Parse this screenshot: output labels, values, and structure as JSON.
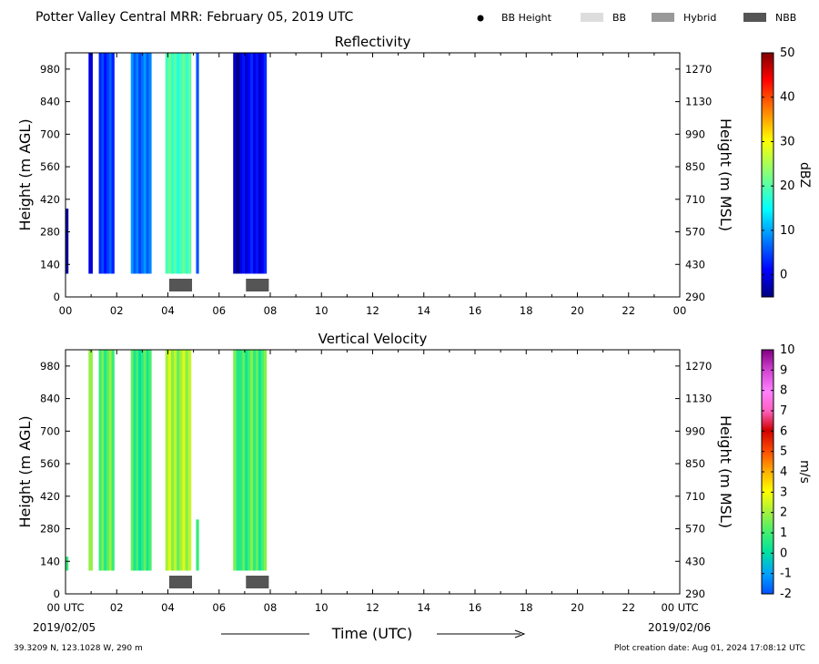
{
  "header": {
    "title": "Potter Valley Central MRR:  February 05, 2019 UTC",
    "legend": [
      {
        "label": "BB Height",
        "kind": "dot",
        "color": "#000000"
      },
      {
        "label": "BB",
        "kind": "box",
        "color": "#dddddd"
      },
      {
        "label": "Hybrid",
        "kind": "box",
        "color": "#999999"
      },
      {
        "label": "NBB",
        "kind": "box",
        "color": "#555555"
      }
    ]
  },
  "footer": {
    "location": "39.3209 N, 123.1028 W, 290 m",
    "creation": "Plot creation date: Aug 01, 2024 17:08:12 UTC",
    "time_label": "Time (UTC)",
    "start_date": "2019/02/05",
    "end_date": "2019/02/06"
  },
  "chart_data": [
    {
      "type": "heatmap",
      "title": "Reflectivity",
      "ylabel": "Height (m AGL)",
      "ylabel_right": "Height (m MSL)",
      "xlim": [
        0,
        24
      ],
      "ylim": [
        0,
        1050
      ],
      "xticks": [
        "00",
        "02",
        "04",
        "06",
        "08",
        "10",
        "12",
        "14",
        "16",
        "18",
        "20",
        "22",
        "00"
      ],
      "yticks_left": [
        0,
        140,
        280,
        420,
        560,
        700,
        840,
        980
      ],
      "yticks_right": [
        290,
        430,
        570,
        710,
        850,
        990,
        1130,
        1270
      ],
      "colorbar": {
        "label": "dBZ",
        "min": -5,
        "max": 50,
        "ticks": [
          0,
          10,
          20,
          30,
          40,
          50
        ],
        "colormap": "jet"
      },
      "echo_columns": [
        {
          "start": 0.0,
          "end": 0.1,
          "top": 380,
          "value": -1
        },
        {
          "start": 0.9,
          "end": 1.05,
          "top": 1050,
          "value": -2
        },
        {
          "start": 1.3,
          "end": 1.9,
          "top": 1050,
          "value": 4
        },
        {
          "start": 2.55,
          "end": 3.35,
          "top": 1050,
          "value": 7
        },
        {
          "start": 3.9,
          "end": 4.9,
          "top": 1050,
          "value": 19
        },
        {
          "start": 5.1,
          "end": 5.2,
          "top": 1050,
          "value": 8
        },
        {
          "start": 6.55,
          "end": 6.8,
          "top": 1050,
          "value": -3
        },
        {
          "start": 6.8,
          "end": 7.85,
          "top": 1050,
          "value": 1
        }
      ],
      "bright_band": [
        {
          "start": 4.0,
          "end": 5.0,
          "type": "NBB"
        },
        {
          "start": 7.0,
          "end": 8.0,
          "type": "NBB"
        }
      ]
    },
    {
      "type": "heatmap",
      "title": "Vertical Velocity",
      "ylabel": "Height (m AGL)",
      "ylabel_right": "Height (m MSL)",
      "xlim": [
        0,
        24
      ],
      "ylim": [
        0,
        1050
      ],
      "xticks": [
        "00 UTC",
        "02",
        "04",
        "06",
        "08",
        "10",
        "12",
        "14",
        "16",
        "18",
        "20",
        "22",
        "00 UTC"
      ],
      "yticks_left": [
        0,
        140,
        280,
        420,
        560,
        700,
        840,
        980
      ],
      "yticks_right": [
        290,
        430,
        570,
        710,
        850,
        990,
        1130,
        1270
      ],
      "colorbar": {
        "label": "m/s",
        "min": -2,
        "max": 10,
        "ticks": [
          -2,
          -1,
          0,
          1,
          2,
          3,
          4,
          5,
          6,
          7,
          8,
          9,
          10
        ],
        "colormap": "rainbow"
      },
      "echo_columns": [
        {
          "start": 0.0,
          "end": 0.1,
          "top": 160,
          "value": 1.5
        },
        {
          "start": 0.9,
          "end": 1.05,
          "top": 1050,
          "value": 1.5
        },
        {
          "start": 1.3,
          "end": 1.9,
          "top": 1050,
          "value": 1.2
        },
        {
          "start": 2.55,
          "end": 3.35,
          "top": 1050,
          "value": 0.7
        },
        {
          "start": 3.9,
          "end": 4.9,
          "top": 1050,
          "value": 2.0
        },
        {
          "start": 5.1,
          "end": 5.2,
          "top": 320,
          "value": 1.5
        },
        {
          "start": 6.55,
          "end": 6.8,
          "top": 1050,
          "value": 1.2
        },
        {
          "start": 6.8,
          "end": 7.85,
          "top": 1050,
          "value": 1.0
        }
      ],
      "bright_band": [
        {
          "start": 4.0,
          "end": 5.0,
          "type": "NBB"
        },
        {
          "start": 7.0,
          "end": 8.0,
          "type": "NBB"
        }
      ]
    }
  ]
}
